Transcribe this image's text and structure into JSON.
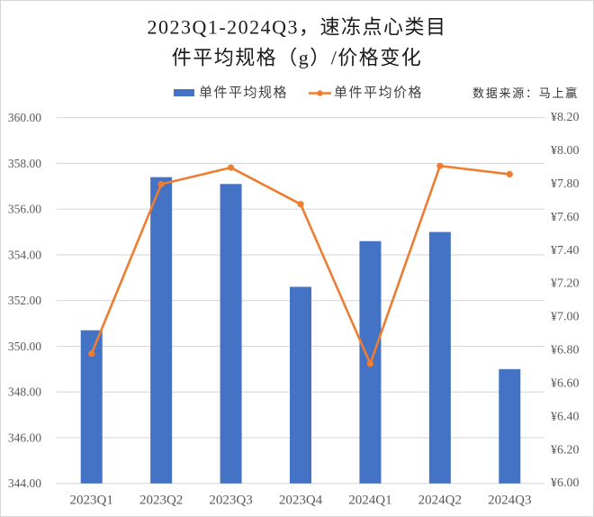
{
  "title": {
    "line1": "2023Q1-2024Q3，速冻点心类目",
    "line2": "件平均规格（g）/价格变化"
  },
  "legend": {
    "bar_label": "单件平均规格",
    "line_label": "单件平均价格"
  },
  "source": "数据来源：马上赢",
  "colors": {
    "bar": "#4472C4",
    "line": "#ED7D31",
    "grid": "#D9D9D9",
    "axis_text": "#595959",
    "title_text": "#1A1A1A",
    "border": "#D6D6D6"
  },
  "chart_data": {
    "type": "bar+line",
    "title": "2023Q1-2024Q3，速冻点心类目件平均规格（g）/价格变化",
    "xlabel": "",
    "ylabel": "",
    "y2label": "",
    "categories": [
      "2023Q1",
      "2023Q2",
      "2023Q3",
      "2023Q4",
      "2024Q1",
      "2024Q2",
      "2024Q3"
    ],
    "series": [
      {
        "name": "单件平均规格",
        "type": "bar",
        "axis": "left",
        "unit": "g",
        "color": "#4472C4",
        "values": [
          350.7,
          357.4,
          357.1,
          352.6,
          354.6,
          355.0,
          349.0
        ]
      },
      {
        "name": "单件平均价格",
        "type": "line",
        "axis": "right",
        "unit": "¥",
        "color": "#ED7D31",
        "values": [
          6.78,
          7.8,
          7.9,
          7.68,
          6.72,
          7.91,
          7.86
        ]
      }
    ],
    "ylim": [
      344,
      360
    ],
    "y_ticks": [
      "344.00",
      "346.00",
      "348.00",
      "350.00",
      "352.00",
      "354.00",
      "356.00",
      "358.00",
      "360.00"
    ],
    "y2lim": [
      6.0,
      8.2
    ],
    "y2_ticks": [
      "¥6.00",
      "¥6.20",
      "¥6.40",
      "¥6.60",
      "¥6.80",
      "¥7.00",
      "¥7.20",
      "¥7.40",
      "¥7.60",
      "¥7.80",
      "¥8.00",
      "¥8.20"
    ],
    "grid": true,
    "legend_position": "top",
    "annotations": [
      "数据来源：马上赢"
    ]
  }
}
